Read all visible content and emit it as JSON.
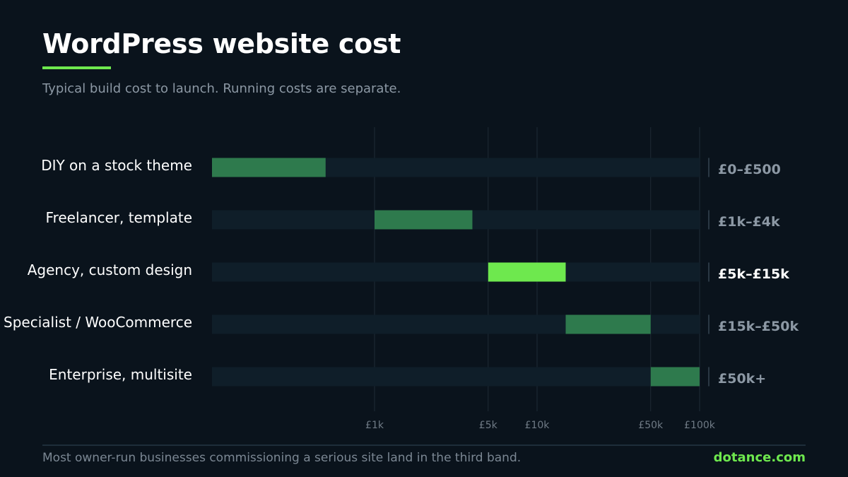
{
  "title": "WordPress website cost",
  "subtitle": "Typical build cost to launch. Running costs are separate.",
  "footnote": "Most owner-run businesses commissioning a serious site land in the third band.",
  "brand": "dotance.com",
  "colors": {
    "accent": "#6ee84e",
    "band": "#2e7a4d",
    "track": "#0f1e29",
    "grid": "#1f2b36",
    "label": "#ffffff",
    "range_label": "#8c98a4",
    "tick": "#6f7a85"
  },
  "chart_data": {
    "type": "range-bar",
    "x_scale": "log",
    "xlim": [
      100,
      100000
    ],
    "ticks": [
      {
        "value": 1000,
        "label": "£1k"
      },
      {
        "value": 5000,
        "label": "£5k"
      },
      {
        "value": 10000,
        "label": "£10k"
      },
      {
        "value": 50000,
        "label": "£50k"
      },
      {
        "value": 100000,
        "label": "£100k"
      }
    ],
    "rows": [
      {
        "label": "DIY on a stock theme",
        "low": 0,
        "high": 500,
        "range_label": "£0–£500",
        "highlight": false
      },
      {
        "label": "Freelancer, template",
        "low": 1000,
        "high": 4000,
        "range_label": "£1k–£4k",
        "highlight": false
      },
      {
        "label": "Agency, custom design",
        "low": 5000,
        "high": 15000,
        "range_label": "£5k–£15k",
        "highlight": true
      },
      {
        "label": "Specialist / WooCommerce",
        "low": 15000,
        "high": 50000,
        "range_label": "£15k–£50k",
        "highlight": false
      },
      {
        "label": "Enterprise, multisite",
        "low": 50000,
        "high": 100000,
        "range_label": "£50k+",
        "highlight": false
      }
    ]
  }
}
